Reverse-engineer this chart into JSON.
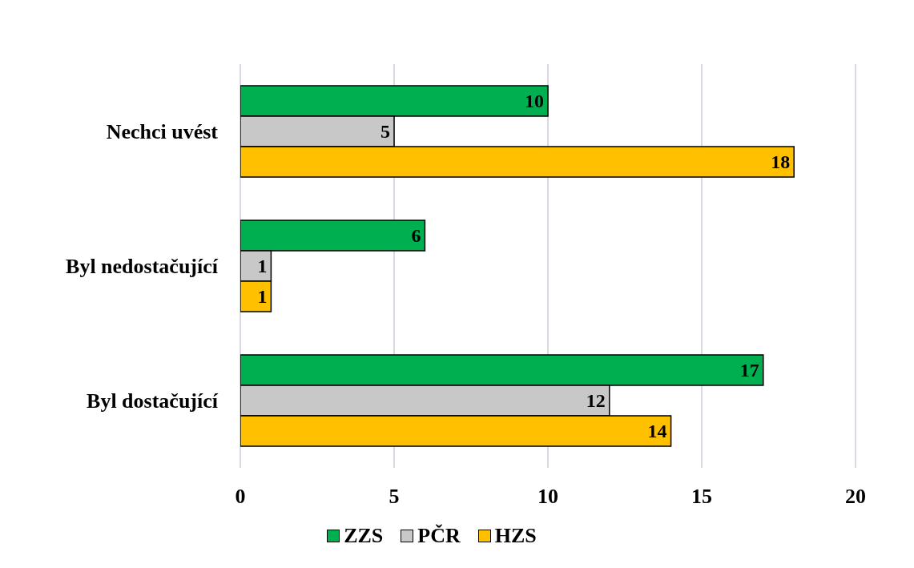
{
  "chart_data": {
    "type": "bar",
    "orientation": "horizontal",
    "categories": [
      "Nechci uvést",
      "Byl nedostačující",
      "Byl dostačující"
    ],
    "series": [
      {
        "name": "ZZS",
        "color": "#00b050",
        "values": [
          10,
          6,
          17
        ]
      },
      {
        "name": "PČR",
        "color": "#c8c8c8",
        "values": [
          5,
          1,
          12
        ]
      },
      {
        "name": "HZS",
        "color": "#ffc000",
        "values": [
          18,
          1,
          14
        ]
      }
    ],
    "xlim": [
      0,
      20
    ],
    "xticks": [
      0,
      5,
      10,
      15,
      20
    ],
    "grid": "x",
    "legend": "bottom",
    "data_labels": true
  }
}
